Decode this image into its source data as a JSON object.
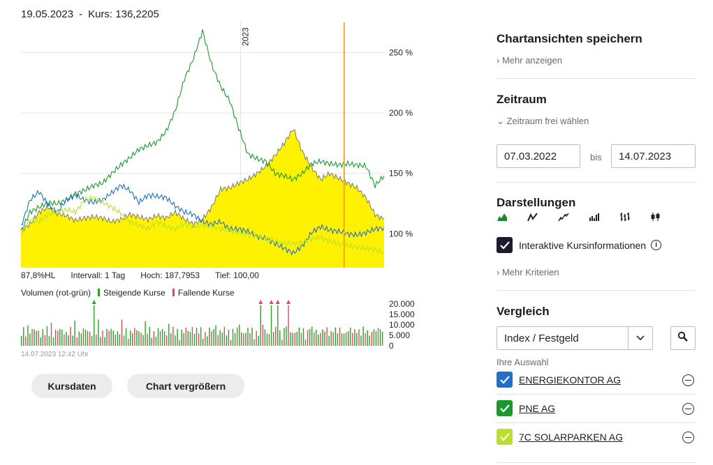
{
  "header": {
    "date": "19.05.2023",
    "separator": "-",
    "kurs_label": "Kurs: 136,2205"
  },
  "chart_data": [
    {
      "type": "area",
      "title": "",
      "year_marker": "2023",
      "yticks": [
        "250 %",
        "200 %",
        "150 %",
        "100 %"
      ],
      "ylim": [
        72,
        275
      ],
      "xrange": [
        "07.03.2022",
        "14.07.2023"
      ],
      "grid": true,
      "series": [
        {
          "color": "#fff200",
          "area": true,
          "values": [
            103,
            108,
            118,
            122,
            117,
            115,
            111,
            113,
            114,
            113,
            110,
            112,
            116,
            114,
            112,
            115,
            113,
            118,
            112,
            108,
            112,
            122,
            137,
            138,
            142,
            145,
            150,
            156,
            165,
            175,
            187,
            168,
            155,
            145,
            150,
            146,
            142,
            138,
            130,
            116,
            112
          ]
        },
        {
          "name": "PNE AG",
          "color": "#1a9a2d",
          "values": [
            102,
            118,
            122,
            126,
            125,
            128,
            133,
            136,
            140,
            142,
            150,
            157,
            163,
            170,
            173,
            176,
            185,
            202,
            228,
            245,
            268,
            240,
            222,
            210,
            187,
            166,
            162,
            160,
            150,
            148,
            145,
            150,
            158,
            160,
            158,
            157,
            158,
            157,
            156,
            140,
            148
          ]
        },
        {
          "name": "ENERGIEKONTOR AG",
          "color": "#1f70c8",
          "values": [
            106,
            128,
            135,
            124,
            118,
            128,
            132,
            128,
            126,
            128,
            134,
            140,
            136,
            126,
            132,
            131,
            130,
            123,
            118,
            116,
            110,
            108,
            110,
            104,
            104,
            102,
            98,
            96,
            92,
            88,
            84,
            90,
            101,
            106,
            103,
            102,
            100,
            99,
            101,
            104,
            105
          ]
        },
        {
          "name": "7C SOLARPARKEN AG",
          "color": "#b9e02b",
          "values": [
            100,
            112,
            110,
            116,
            118,
            120,
            118,
            128,
            130,
            126,
            122,
            117,
            110,
            107,
            104,
            110,
            106,
            104,
            108,
            106,
            107,
            106,
            104,
            103,
            101,
            99,
            98,
            96,
            94,
            92,
            92,
            93,
            96,
            97,
            94,
            92,
            90,
            89,
            88,
            87,
            84
          ]
        }
      ],
      "highlight_x": "19.05.2023"
    },
    {
      "type": "bar",
      "title": "Volumen (rot-grün)",
      "yticks": [
        "20.000",
        "15.000",
        "10.000",
        "5.000",
        "0"
      ],
      "ylim": [
        0,
        20000
      ],
      "legend": [
        "Steigende Kurse",
        "Fallende Kurse"
      ],
      "colors": {
        "up": "#2aa02a",
        "down": "#e0485e"
      }
    }
  ],
  "stats": {
    "hl": "87,8%HL",
    "intervall": "Intervall: 1 Tag",
    "hoch": "Hoch: 187,7953",
    "tief": "Tief: 100,00"
  },
  "volume_legend": {
    "title": "Volumen (rot-grün)",
    "up": "Steigende Kurse",
    "down": "Fallende Kurse"
  },
  "timestamp": "14.07.2023 12:42 Uhr",
  "buttons": {
    "kursdaten": "Kursdaten",
    "vergroessern": "Chart vergrößern"
  },
  "sidebar": {
    "save_title": "Chartansichten speichern",
    "mehr_anzeigen": "Mehr anzeigen",
    "zeitraum_title": "Zeitraum",
    "zeitraum_link": "Zeitraum frei wählen",
    "date_from": "07.03.2022",
    "bis": "bis",
    "date_to": "14.07.2023",
    "darstellungen_title": "Darstellungen",
    "chart_type_icons": [
      "area-chart-icon",
      "line-chart-icon",
      "hlc-chart-icon",
      "bar-chart-icon",
      "ohlc-chart-icon",
      "candlestick-chart-icon"
    ],
    "interactive_label": "Interaktive Kursinformationen",
    "mehr_kriterien": "Mehr Kriterien",
    "vergleich_title": "Vergleich",
    "select_value": "Index / Festgeld",
    "ihre_auswahl": "Ihre Auswahl",
    "comparisons": [
      {
        "label": "ENERGIEKONTOR AG",
        "color": "#1f70c8"
      },
      {
        "label": "PNE AG",
        "color": "#1a9a2d"
      },
      {
        "label": "7C SOLARPARKEN AG",
        "color": "#b9e02b"
      }
    ]
  }
}
